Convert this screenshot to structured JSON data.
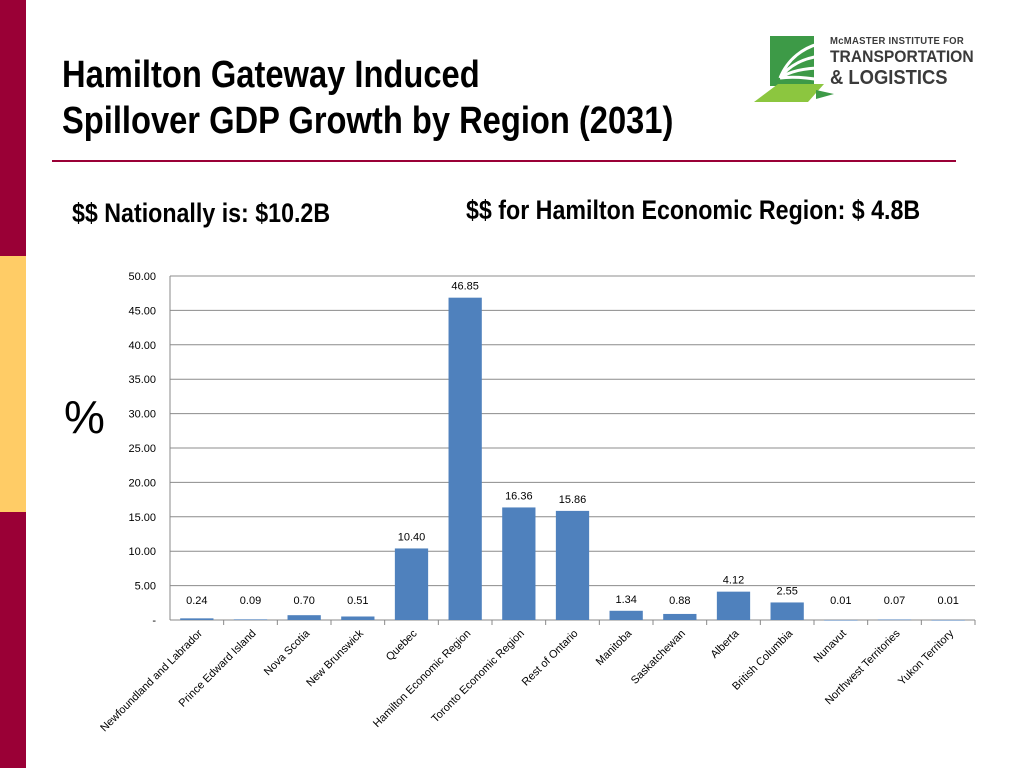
{
  "slide": {
    "title_line1": "Hamilton Gateway Induced",
    "title_line2": "Spillover GDP Growth by Region (2031)",
    "national_text": "$$ Nationally is:  $10.2B",
    "hamilton_text": "$$ for Hamilton Economic Region: $ 4.8B",
    "percent_label": "%"
  },
  "logo": {
    "line1": "McMASTER INSTITUTE FOR",
    "line2": "TRANSPORTATION",
    "line3": "& LOGISTICS"
  },
  "colors": {
    "accent_bar": "#9a0036",
    "accent_block": "#ffcc66",
    "bar": "#4f81bd",
    "logo_green": "#3d9a47"
  },
  "chart_data": {
    "type": "bar",
    "categories": [
      "Newfoundland and Labrador",
      "Prince Edward Island",
      "Nova Scotia",
      "New Brunswick",
      "Quebec",
      "Hamilton Economic Region",
      "Toronto Economic Region",
      "Rest of Ontario",
      "Manitoba",
      "Saskatchewan",
      "Alberta",
      "British Columbia",
      "Nunavut",
      "Northwest Territories",
      "Yukon Territory"
    ],
    "values": [
      0.24,
      0.09,
      0.7,
      0.51,
      10.4,
      46.85,
      16.36,
      15.86,
      1.34,
      0.88,
      4.12,
      2.55,
      0.01,
      0.07,
      0.01
    ],
    "value_labels": [
      "0.24",
      "0.09",
      "0.70",
      "0.51",
      "10.40",
      "46.85",
      "16.36",
      "15.86",
      "1.34",
      "0.88",
      "4.12",
      "2.55",
      "0.01",
      "0.07",
      "0.01"
    ],
    "y_ticks": [
      0,
      5,
      10,
      15,
      20,
      25,
      30,
      35,
      40,
      45,
      50
    ],
    "y_tick_labels": [
      "-",
      "5.00",
      "10.00",
      "15.00",
      "20.00",
      "25.00",
      "30.00",
      "35.00",
      "40.00",
      "45.00",
      "50.00"
    ],
    "ylim": [
      0,
      50
    ],
    "grid": true,
    "legend": "none",
    "title": "",
    "xlabel": "",
    "ylabel": "%"
  }
}
